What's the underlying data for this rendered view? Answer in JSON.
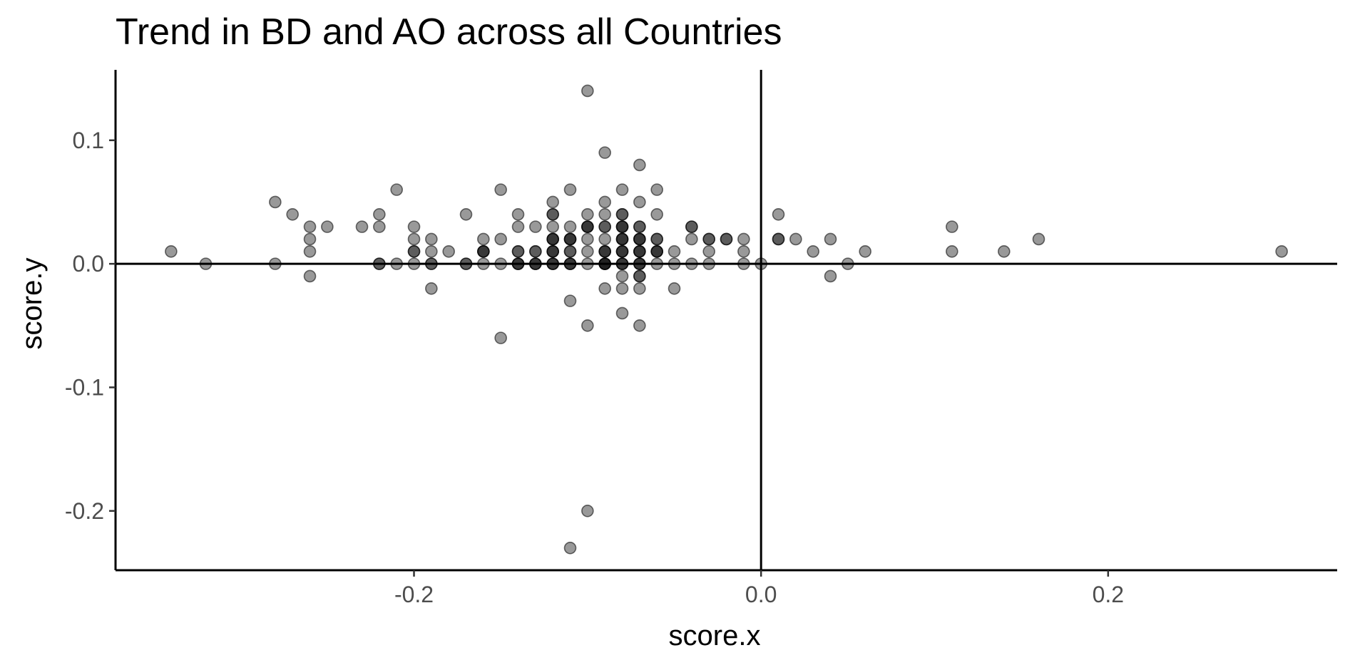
{
  "chart_data": {
    "type": "scatter",
    "title": "Trend in BD and AO across all Countries",
    "xlabel": "score.x",
    "ylabel": "score.y",
    "xlim": [
      -0.372,
      0.332
    ],
    "ylim": [
      -0.248,
      0.157
    ],
    "x_ticks": [
      -0.2,
      0.0,
      0.2
    ],
    "x_tick_labels": [
      "-0.2",
      "0.0",
      "0.2"
    ],
    "y_ticks": [
      -0.2,
      -0.1,
      0.0,
      0.1
    ],
    "y_tick_labels": [
      "-0.2",
      "-0.1",
      "0.0",
      "0.1"
    ],
    "reference_lines": {
      "x": 0,
      "y": 0
    },
    "grid": false,
    "legend": "none",
    "point_color": "#000000",
    "point_opacity": 0.4,
    "points": [
      {
        "x": -0.34,
        "y": 0.01
      },
      {
        "x": -0.32,
        "y": 0.0
      },
      {
        "x": -0.28,
        "y": 0.05
      },
      {
        "x": -0.28,
        "y": 0.0
      },
      {
        "x": -0.27,
        "y": 0.04
      },
      {
        "x": -0.26,
        "y": 0.03
      },
      {
        "x": -0.26,
        "y": 0.02
      },
      {
        "x": -0.26,
        "y": 0.01
      },
      {
        "x": -0.26,
        "y": -0.01
      },
      {
        "x": -0.25,
        "y": 0.03
      },
      {
        "x": -0.23,
        "y": 0.03
      },
      {
        "x": -0.22,
        "y": 0.04
      },
      {
        "x": -0.22,
        "y": 0.03
      },
      {
        "x": -0.22,
        "y": 0.0
      },
      {
        "x": -0.22,
        "y": 0.0
      },
      {
        "x": -0.21,
        "y": 0.06
      },
      {
        "x": -0.21,
        "y": 0.0
      },
      {
        "x": -0.2,
        "y": 0.03
      },
      {
        "x": -0.2,
        "y": 0.02
      },
      {
        "x": -0.2,
        "y": 0.01
      },
      {
        "x": -0.2,
        "y": 0.01
      },
      {
        "x": -0.2,
        "y": 0.0
      },
      {
        "x": -0.19,
        "y": 0.02
      },
      {
        "x": -0.19,
        "y": 0.01
      },
      {
        "x": -0.19,
        "y": 0.0
      },
      {
        "x": -0.19,
        "y": 0.0
      },
      {
        "x": -0.19,
        "y": -0.02
      },
      {
        "x": -0.18,
        "y": 0.01
      },
      {
        "x": -0.17,
        "y": 0.04
      },
      {
        "x": -0.17,
        "y": 0.0
      },
      {
        "x": -0.17,
        "y": 0.0
      },
      {
        "x": -0.16,
        "y": 0.02
      },
      {
        "x": -0.16,
        "y": 0.01
      },
      {
        "x": -0.16,
        "y": 0.01
      },
      {
        "x": -0.16,
        "y": 0.01
      },
      {
        "x": -0.16,
        "y": 0.0
      },
      {
        "x": -0.15,
        "y": 0.06
      },
      {
        "x": -0.15,
        "y": 0.02
      },
      {
        "x": -0.15,
        "y": 0.0
      },
      {
        "x": -0.15,
        "y": -0.06
      },
      {
        "x": -0.14,
        "y": 0.04
      },
      {
        "x": -0.14,
        "y": 0.03
      },
      {
        "x": -0.14,
        "y": 0.01
      },
      {
        "x": -0.14,
        "y": 0.01
      },
      {
        "x": -0.14,
        "y": 0.0
      },
      {
        "x": -0.14,
        "y": 0.0
      },
      {
        "x": -0.14,
        "y": 0.0
      },
      {
        "x": -0.13,
        "y": 0.03
      },
      {
        "x": -0.13,
        "y": 0.01
      },
      {
        "x": -0.13,
        "y": 0.01
      },
      {
        "x": -0.13,
        "y": 0.0
      },
      {
        "x": -0.13,
        "y": 0.0
      },
      {
        "x": -0.13,
        "y": 0.0
      },
      {
        "x": -0.12,
        "y": 0.05
      },
      {
        "x": -0.12,
        "y": 0.04
      },
      {
        "x": -0.12,
        "y": 0.04
      },
      {
        "x": -0.12,
        "y": 0.03
      },
      {
        "x": -0.12,
        "y": 0.02
      },
      {
        "x": -0.12,
        "y": 0.02
      },
      {
        "x": -0.12,
        "y": 0.02
      },
      {
        "x": -0.12,
        "y": 0.01
      },
      {
        "x": -0.12,
        "y": 0.01
      },
      {
        "x": -0.12,
        "y": 0.01
      },
      {
        "x": -0.12,
        "y": 0.0
      },
      {
        "x": -0.12,
        "y": 0.0
      },
      {
        "x": -0.12,
        "y": 0.0
      },
      {
        "x": -0.11,
        "y": 0.06
      },
      {
        "x": -0.11,
        "y": 0.03
      },
      {
        "x": -0.11,
        "y": 0.02
      },
      {
        "x": -0.11,
        "y": 0.02
      },
      {
        "x": -0.11,
        "y": 0.02
      },
      {
        "x": -0.11,
        "y": 0.01
      },
      {
        "x": -0.11,
        "y": 0.01
      },
      {
        "x": -0.11,
        "y": 0.0
      },
      {
        "x": -0.11,
        "y": 0.0
      },
      {
        "x": -0.11,
        "y": 0.0
      },
      {
        "x": -0.11,
        "y": -0.03
      },
      {
        "x": -0.11,
        "y": -0.23
      },
      {
        "x": -0.1,
        "y": 0.14
      },
      {
        "x": -0.1,
        "y": 0.04
      },
      {
        "x": -0.1,
        "y": 0.03
      },
      {
        "x": -0.1,
        "y": 0.03
      },
      {
        "x": -0.1,
        "y": 0.03
      },
      {
        "x": -0.1,
        "y": 0.02
      },
      {
        "x": -0.1,
        "y": 0.01
      },
      {
        "x": -0.1,
        "y": 0.0
      },
      {
        "x": -0.1,
        "y": -0.05
      },
      {
        "x": -0.1,
        "y": -0.2
      },
      {
        "x": -0.09,
        "y": 0.09
      },
      {
        "x": -0.09,
        "y": 0.05
      },
      {
        "x": -0.09,
        "y": 0.04
      },
      {
        "x": -0.09,
        "y": 0.03
      },
      {
        "x": -0.09,
        "y": 0.03
      },
      {
        "x": -0.09,
        "y": 0.02
      },
      {
        "x": -0.09,
        "y": 0.01
      },
      {
        "x": -0.09,
        "y": 0.01
      },
      {
        "x": -0.09,
        "y": 0.01
      },
      {
        "x": -0.09,
        "y": 0.0
      },
      {
        "x": -0.09,
        "y": 0.0
      },
      {
        "x": -0.09,
        "y": 0.0
      },
      {
        "x": -0.09,
        "y": 0.0
      },
      {
        "x": -0.09,
        "y": -0.02
      },
      {
        "x": -0.08,
        "y": 0.06
      },
      {
        "x": -0.08,
        "y": 0.04
      },
      {
        "x": -0.08,
        "y": 0.04
      },
      {
        "x": -0.08,
        "y": 0.03
      },
      {
        "x": -0.08,
        "y": 0.03
      },
      {
        "x": -0.08,
        "y": 0.03
      },
      {
        "x": -0.08,
        "y": 0.02
      },
      {
        "x": -0.08,
        "y": 0.02
      },
      {
        "x": -0.08,
        "y": 0.02
      },
      {
        "x": -0.08,
        "y": 0.01
      },
      {
        "x": -0.08,
        "y": 0.01
      },
      {
        "x": -0.08,
        "y": 0.01
      },
      {
        "x": -0.08,
        "y": 0.0
      },
      {
        "x": -0.08,
        "y": 0.0
      },
      {
        "x": -0.08,
        "y": 0.0
      },
      {
        "x": -0.08,
        "y": -0.01
      },
      {
        "x": -0.08,
        "y": -0.02
      },
      {
        "x": -0.08,
        "y": -0.04
      },
      {
        "x": -0.07,
        "y": 0.08
      },
      {
        "x": -0.07,
        "y": 0.05
      },
      {
        "x": -0.07,
        "y": 0.03
      },
      {
        "x": -0.07,
        "y": 0.03
      },
      {
        "x": -0.07,
        "y": 0.02
      },
      {
        "x": -0.07,
        "y": 0.02
      },
      {
        "x": -0.07,
        "y": 0.02
      },
      {
        "x": -0.07,
        "y": 0.01
      },
      {
        "x": -0.07,
        "y": 0.01
      },
      {
        "x": -0.07,
        "y": 0.01
      },
      {
        "x": -0.07,
        "y": 0.0
      },
      {
        "x": -0.07,
        "y": 0.0
      },
      {
        "x": -0.07,
        "y": 0.0
      },
      {
        "x": -0.07,
        "y": -0.01
      },
      {
        "x": -0.07,
        "y": -0.01
      },
      {
        "x": -0.07,
        "y": -0.02
      },
      {
        "x": -0.07,
        "y": -0.05
      },
      {
        "x": -0.06,
        "y": 0.06
      },
      {
        "x": -0.06,
        "y": 0.04
      },
      {
        "x": -0.06,
        "y": 0.02
      },
      {
        "x": -0.06,
        "y": 0.02
      },
      {
        "x": -0.06,
        "y": 0.01
      },
      {
        "x": -0.06,
        "y": 0.01
      },
      {
        "x": -0.06,
        "y": 0.01
      },
      {
        "x": -0.06,
        "y": 0.0
      },
      {
        "x": -0.05,
        "y": 0.01
      },
      {
        "x": -0.05,
        "y": 0.0
      },
      {
        "x": -0.05,
        "y": -0.02
      },
      {
        "x": -0.04,
        "y": 0.03
      },
      {
        "x": -0.04,
        "y": 0.03
      },
      {
        "x": -0.04,
        "y": 0.02
      },
      {
        "x": -0.04,
        "y": 0.0
      },
      {
        "x": -0.03,
        "y": 0.02
      },
      {
        "x": -0.03,
        "y": 0.02
      },
      {
        "x": -0.03,
        "y": 0.01
      },
      {
        "x": -0.03,
        "y": 0.0
      },
      {
        "x": -0.02,
        "y": 0.02
      },
      {
        "x": -0.02,
        "y": 0.02
      },
      {
        "x": -0.01,
        "y": 0.02
      },
      {
        "x": -0.01,
        "y": 0.01
      },
      {
        "x": -0.01,
        "y": 0.0
      },
      {
        "x": 0.0,
        "y": 0.0
      },
      {
        "x": 0.01,
        "y": 0.04
      },
      {
        "x": 0.01,
        "y": 0.02
      },
      {
        "x": 0.01,
        "y": 0.02
      },
      {
        "x": 0.02,
        "y": 0.02
      },
      {
        "x": 0.03,
        "y": 0.01
      },
      {
        "x": 0.04,
        "y": 0.02
      },
      {
        "x": 0.04,
        "y": -0.01
      },
      {
        "x": 0.05,
        "y": 0.0
      },
      {
        "x": 0.06,
        "y": 0.01
      },
      {
        "x": 0.11,
        "y": 0.03
      },
      {
        "x": 0.11,
        "y": 0.01
      },
      {
        "x": 0.14,
        "y": 0.01
      },
      {
        "x": 0.16,
        "y": 0.02
      },
      {
        "x": 0.3,
        "y": 0.01
      }
    ]
  }
}
